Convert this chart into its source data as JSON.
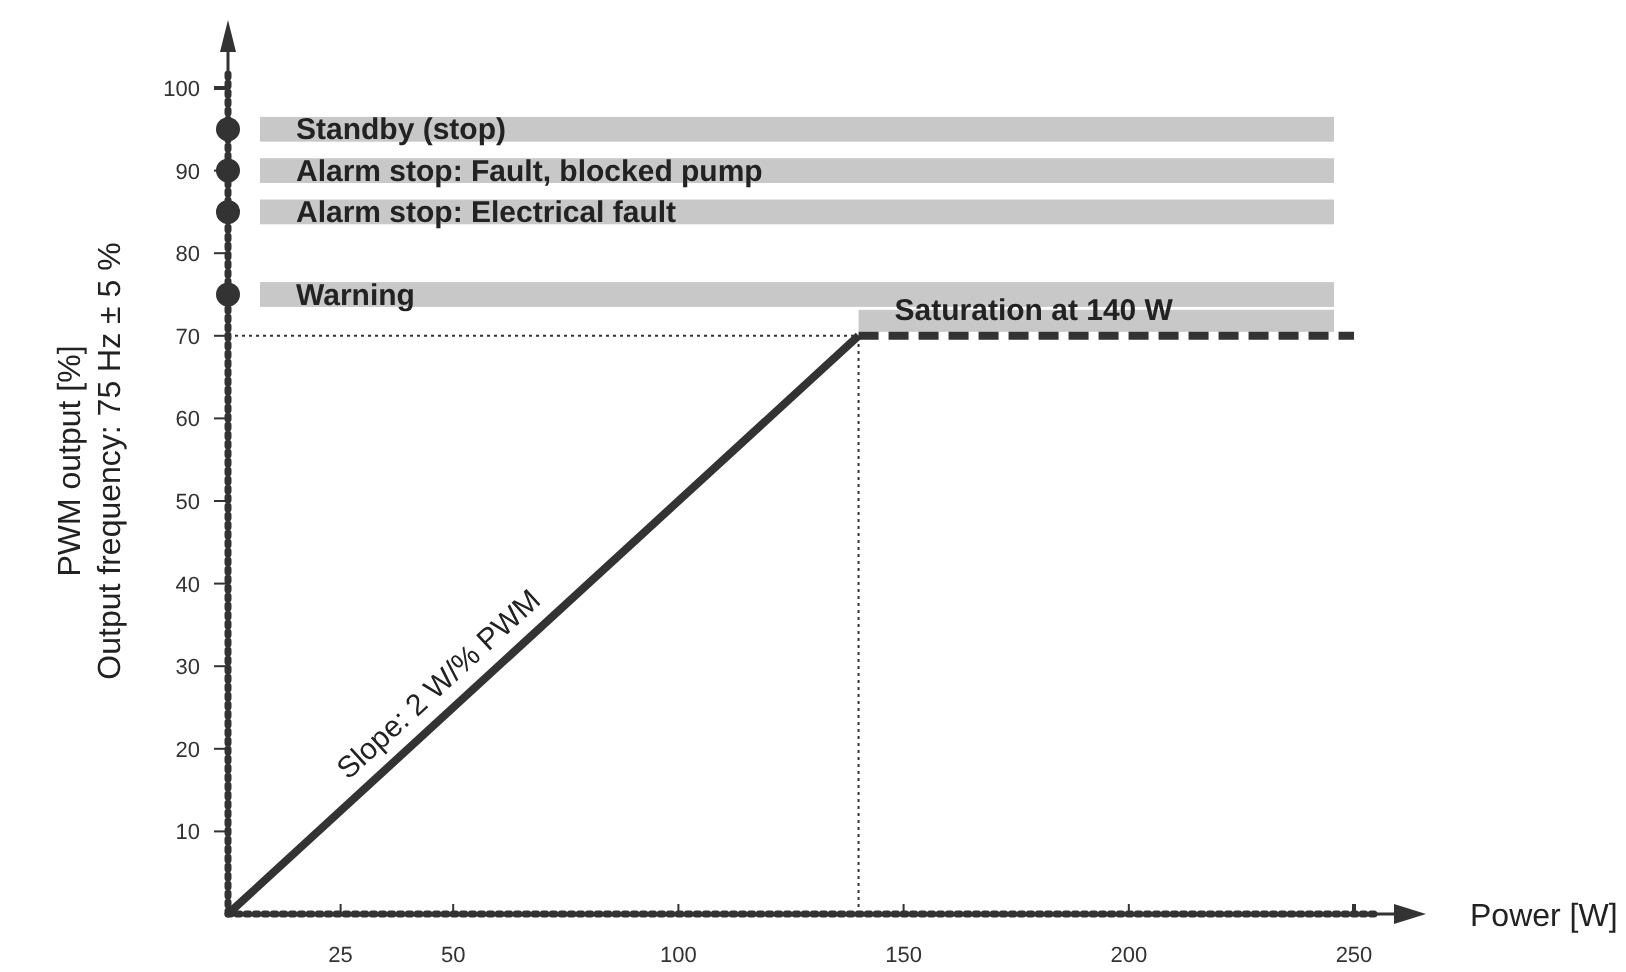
{
  "chart_data": {
    "type": "line",
    "xlabel": "Power [W]",
    "ylabel": "PWM output [%]\nOutput frequency: 75 Hz ± 5 %",
    "xlim": [
      0,
      250
    ],
    "ylim": [
      0,
      100
    ],
    "xticks": [
      25,
      50,
      100,
      150,
      200,
      250
    ],
    "yticks": [
      10,
      20,
      30,
      40,
      50,
      60,
      70,
      80,
      90,
      100
    ],
    "series": [
      {
        "type": "line",
        "color": "#333333",
        "x": [
          0,
          140
        ],
        "values": [
          0,
          70
        ],
        "line_style": "solid"
      },
      {
        "type": "line",
        "color": "#333333",
        "x": [
          140,
          250
        ],
        "values": [
          70,
          70
        ],
        "line_style": "dashed"
      },
      {
        "type": "scatter",
        "color": "#333333",
        "x": [
          0,
          0,
          0,
          0
        ],
        "values": [
          95,
          90,
          85,
          75
        ],
        "marker": "circle"
      }
    ],
    "bands": [
      {
        "axis": "y",
        "from": 93.5,
        "to": 96.5,
        "label": "Standby (stop)",
        "color": "#c8c8c8"
      },
      {
        "axis": "y",
        "from": 88.5,
        "to": 91.5,
        "label": "Alarm stop: Fault, blocked pump",
        "color": "#c8c8c8"
      },
      {
        "axis": "y",
        "from": 83.5,
        "to": 86.5,
        "label": "Alarm stop: Electrical fault",
        "color": "#c8c8c8"
      },
      {
        "axis": "y",
        "from": 73.5,
        "to": 76.5,
        "label": "Warning",
        "color": "#c8c8c8"
      }
    ],
    "ref_lines": [
      {
        "axis": "x",
        "value": 140,
        "line_style": "dotted"
      },
      {
        "axis": "y",
        "value": 70,
        "line_style": "dotted"
      }
    ],
    "annotations": [
      {
        "text": "Saturation at 140 W",
        "x": 140,
        "y": 70
      },
      {
        "text": "Slope: 2 W/% PWM",
        "x": 50,
        "y": 25
      }
    ]
  }
}
